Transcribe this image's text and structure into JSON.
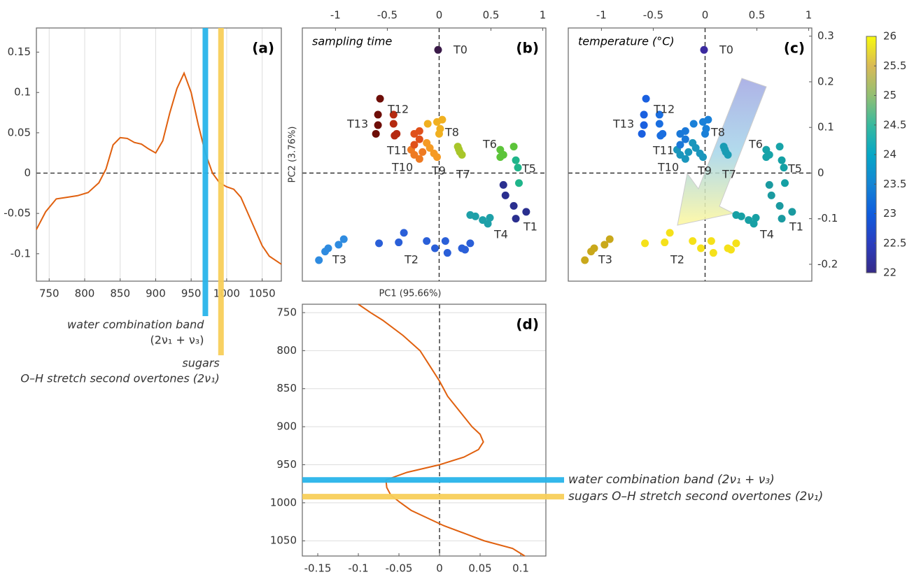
{
  "chart_data": [
    {
      "type": "line",
      "panel_label": "(a)",
      "color": "#e0600e",
      "xlim": [
        732,
        1077
      ],
      "xticks": [
        750,
        800,
        850,
        900,
        950,
        1000,
        1050
      ],
      "xtick_side": "bottom",
      "ylim": [
        -0.134,
        0.18
      ],
      "yticks": [
        -0.1,
        -0.05,
        0,
        0.05,
        0.1,
        0.15
      ],
      "ytick_side": "left",
      "grid": "x",
      "zero_lines": true,
      "x": [
        732,
        745,
        760,
        775,
        790,
        805,
        820,
        830,
        840,
        850,
        860,
        870,
        880,
        890,
        900,
        910,
        920,
        930,
        940,
        950,
        960,
        970,
        980,
        990,
        1000,
        1010,
        1020,
        1030,
        1040,
        1050,
        1060,
        1077
      ],
      "values": [
        -0.07,
        -0.048,
        -0.032,
        -0.03,
        -0.028,
        -0.024,
        -0.012,
        0.005,
        0.035,
        0.044,
        0.043,
        0.038,
        0.036,
        0.03,
        0.025,
        0.04,
        0.075,
        0.105,
        0.124,
        0.1,
        0.06,
        0.025,
        0.0,
        -0.012,
        -0.017,
        -0.02,
        -0.03,
        -0.05,
        -0.07,
        -0.09,
        -0.103,
        -0.113
      ],
      "bands": [
        {
          "value": 970,
          "color": "#29b5ea",
          "label": "water combination band",
          "formula": "(2ν₁ + ν₃)"
        },
        {
          "value": 992,
          "color": "#f8cf5a",
          "label": "sugars",
          "formula": "O–H stretch second overtones (2ν₁)"
        }
      ]
    },
    {
      "type": "scatter",
      "panel_label": "(b)",
      "title": "sampling time",
      "xlabel": "PC1 (95.66%)",
      "ylabel": "PC2 (3.76%)",
      "xlim": [
        -1.32,
        1.03
      ],
      "xticks": [
        -1,
        -0.5,
        0,
        0.5,
        1
      ],
      "xtick_side": "top",
      "ylim": [
        -0.237,
        0.318
      ],
      "zero_lines": true,
      "series": [
        {
          "name": "T0",
          "color": "#3a1a48",
          "x": [
            -0.01
          ],
          "y": [
            0.27
          ]
        },
        {
          "name": "T1",
          "color": "#2a2f8f",
          "x": [
            0.62,
            0.64,
            0.72,
            0.84,
            0.74
          ],
          "y": [
            -0.026,
            -0.049,
            -0.072,
            -0.085,
            -0.1
          ]
        },
        {
          "name": "T2",
          "color": "#2a5fd8",
          "x": [
            -0.58,
            -0.39,
            -0.34,
            -0.12,
            -0.04,
            0.06,
            0.08,
            0.22,
            0.3,
            0.25
          ],
          "y": [
            -0.154,
            -0.152,
            -0.131,
            -0.149,
            -0.165,
            -0.149,
            -0.175,
            -0.165,
            -0.154,
            -0.168
          ]
        },
        {
          "name": "T3",
          "color": "#2e8be0",
          "x": [
            -1.16,
            -1.1,
            -1.07,
            -0.97,
            -0.92
          ],
          "y": [
            -0.191,
            -0.172,
            -0.165,
            -0.157,
            -0.145
          ]
        },
        {
          "name": "T4",
          "color": "#1ea0a8",
          "x": [
            0.3,
            0.35,
            0.42,
            0.47,
            0.49
          ],
          "y": [
            -0.092,
            -0.095,
            -0.103,
            -0.111,
            -0.098
          ]
        },
        {
          "name": "T5",
          "color": "#1fb58a",
          "x": [
            0.76,
            0.77,
            0.74
          ],
          "y": [
            0.012,
            -0.022,
            0.028
          ]
        },
        {
          "name": "T6",
          "color": "#5cc43a",
          "x": [
            0.59,
            0.62,
            0.59,
            0.72
          ],
          "y": [
            0.051,
            0.04,
            0.035,
            0.058
          ]
        },
        {
          "name": "T7",
          "color": "#a8c62a",
          "x": [
            0.18,
            0.2,
            0.22,
            0.19
          ],
          "y": [
            0.058,
            0.046,
            0.04,
            0.052
          ]
        },
        {
          "name": "T8",
          "color": "#f0b020",
          "x": [
            -0.02,
            0.01,
            0,
            -0.11,
            0.03
          ],
          "y": [
            0.112,
            0.097,
            0.086,
            0.108,
            0.117
          ]
        },
        {
          "name": "T9",
          "color": "#f59a24",
          "x": [
            -0.09,
            -0.05,
            -0.12,
            -0.02
          ],
          "y": [
            0.055,
            0.043,
            0.066,
            0.035
          ]
        },
        {
          "name": "T10",
          "color": "#ee7a22",
          "x": [
            -0.24,
            -0.19,
            -0.16,
            -0.27
          ],
          "y": [
            0.04,
            0.031,
            0.046,
            0.051
          ]
        },
        {
          "name": "T11",
          "color": "#e0501a",
          "x": [
            -0.24,
            -0.19,
            -0.24,
            -0.19
          ],
          "y": [
            0.086,
            0.074,
            0.062,
            0.092
          ]
        },
        {
          "name": "T12",
          "color": "#b52a10",
          "x": [
            -0.44,
            -0.44,
            -0.41,
            -0.43
          ],
          "y": [
            0.128,
            0.108,
            0.086,
            0.082
          ]
        },
        {
          "name": "T13",
          "color": "#6e0e08",
          "x": [
            -0.57,
            -0.59,
            -0.59,
            -0.61
          ],
          "y": [
            0.163,
            0.128,
            0.105,
            0.086
          ]
        }
      ]
    },
    {
      "type": "scatter",
      "panel_label": "(c)",
      "title": "temperature (°C)",
      "xlim": [
        -1.32,
        1.03
      ],
      "xticks": [
        -1,
        -0.5,
        0,
        0.5,
        1
      ],
      "xtick_side": "top",
      "ylim": [
        -0.237,
        0.318
      ],
      "yticks": [
        -0.2,
        -0.1,
        0,
        0.1,
        0.2,
        0.3
      ],
      "ytick_side": "right",
      "zero_lines": true,
      "colorbar": {
        "lim": [
          22,
          26
        ],
        "ticks": [
          22,
          22.5,
          23,
          23.5,
          24,
          24.5,
          25,
          25.5,
          26
        ],
        "colors": [
          "#352a87",
          "#2a3dbf",
          "#0f5cdd",
          "#1485d4",
          "#06a7c6",
          "#38b99e",
          "#92bf73",
          "#d9ba56",
          "#f8fa0d"
        ]
      },
      "series": [
        {
          "name": "T0",
          "color": "#3b2a9f",
          "x": [
            -0.01
          ],
          "y": [
            0.27
          ]
        },
        {
          "name": "T1",
          "color": "#1a9aa0",
          "x": [
            0.62,
            0.64,
            0.72,
            0.84,
            0.74
          ],
          "y": [
            -0.026,
            -0.049,
            -0.072,
            -0.085,
            -0.1
          ]
        },
        {
          "name": "T2",
          "color": "#f5e11a",
          "x": [
            -0.58,
            -0.39,
            -0.34,
            -0.12,
            -0.04,
            0.06,
            0.08,
            0.22,
            0.3,
            0.25
          ],
          "y": [
            -0.154,
            -0.152,
            -0.131,
            -0.149,
            -0.165,
            -0.149,
            -0.175,
            -0.165,
            -0.154,
            -0.168
          ]
        },
        {
          "name": "T3",
          "color": "#c9a81b",
          "x": [
            -1.16,
            -1.1,
            -1.07,
            -0.97,
            -0.92
          ],
          "y": [
            -0.191,
            -0.172,
            -0.165,
            -0.157,
            -0.145
          ]
        },
        {
          "name": "T4",
          "color": "#17a0a4",
          "x": [
            0.3,
            0.35,
            0.42,
            0.47,
            0.49
          ],
          "y": [
            -0.092,
            -0.095,
            -0.103,
            -0.111,
            -0.098
          ]
        },
        {
          "name": "T5",
          "color": "#14a0a4",
          "x": [
            0.76,
            0.77,
            0.74
          ],
          "y": [
            0.012,
            -0.022,
            0.028
          ]
        },
        {
          "name": "T6",
          "color": "#17a3a8",
          "x": [
            0.59,
            0.62,
            0.59,
            0.72
          ],
          "y": [
            0.051,
            0.04,
            0.035,
            0.058
          ]
        },
        {
          "name": "T7",
          "color": "#1a9cb4",
          "x": [
            0.18,
            0.2,
            0.22,
            0.19
          ],
          "y": [
            0.058,
            0.046,
            0.04,
            0.052
          ]
        },
        {
          "name": "T8",
          "color": "#1a80d8",
          "x": [
            -0.02,
            0.01,
            0,
            -0.11,
            0.03
          ],
          "y": [
            0.112,
            0.097,
            0.086,
            0.108,
            0.117
          ]
        },
        {
          "name": "T9",
          "color": "#1a96bc",
          "x": [
            -0.09,
            -0.05,
            -0.12,
            -0.02
          ],
          "y": [
            0.055,
            0.043,
            0.066,
            0.035
          ]
        },
        {
          "name": "T10",
          "color": "#1a96bc",
          "x": [
            -0.24,
            -0.19,
            -0.16,
            -0.27
          ],
          "y": [
            0.04,
            0.031,
            0.046,
            0.051
          ]
        },
        {
          "name": "T11",
          "color": "#1a78d8",
          "x": [
            -0.24,
            -0.19,
            -0.24,
            -0.19
          ],
          "y": [
            0.086,
            0.074,
            0.062,
            0.092
          ]
        },
        {
          "name": "T12",
          "color": "#1a6ee0",
          "x": [
            -0.44,
            -0.44,
            -0.41,
            -0.43
          ],
          "y": [
            0.128,
            0.108,
            0.086,
            0.082
          ]
        },
        {
          "name": "T13",
          "color": "#1a60e0",
          "x": [
            -0.57,
            -0.59,
            -0.59,
            -0.61
          ],
          "y": [
            0.163,
            0.128,
            0.105,
            0.086
          ]
        }
      ]
    },
    {
      "type": "line",
      "panel_label": "(d)",
      "orientation": "vertical",
      "color": "#e0600e",
      "xlim": [
        -0.169,
        0.131
      ],
      "xticks": [
        -0.15,
        -0.1,
        -0.05,
        0,
        0.05,
        0.1
      ],
      "xtick_side": "bottom",
      "ylim": [
        739,
        1070
      ],
      "y_inverted": true,
      "yticks": [
        750,
        800,
        850,
        900,
        950,
        1000,
        1050
      ],
      "ytick_side": "left",
      "grid": "y",
      "zero_lines": true,
      "x": [
        739,
        750,
        760,
        780,
        800,
        820,
        840,
        860,
        880,
        900,
        910,
        920,
        930,
        940,
        950,
        960,
        970,
        980,
        990,
        1000,
        1010,
        1020,
        1030,
        1040,
        1050,
        1060,
        1070
      ],
      "values": [
        -0.1,
        -0.085,
        -0.07,
        -0.045,
        -0.024,
        -0.012,
        0.0,
        0.01,
        0.025,
        0.04,
        0.05,
        0.054,
        0.048,
        0.03,
        0.0,
        -0.04,
        -0.066,
        -0.065,
        -0.06,
        -0.048,
        -0.035,
        -0.015,
        0.005,
        0.03,
        0.055,
        0.09,
        0.105
      ],
      "bands": [
        {
          "value": 970,
          "color": "#29b5ea",
          "label": "water combination band (2ν₁ + ν₃)"
        },
        {
          "value": 992,
          "color": "#f8cf5a",
          "label": "sugars O–H stretch second overtones (2ν₁)"
        }
      ]
    }
  ]
}
